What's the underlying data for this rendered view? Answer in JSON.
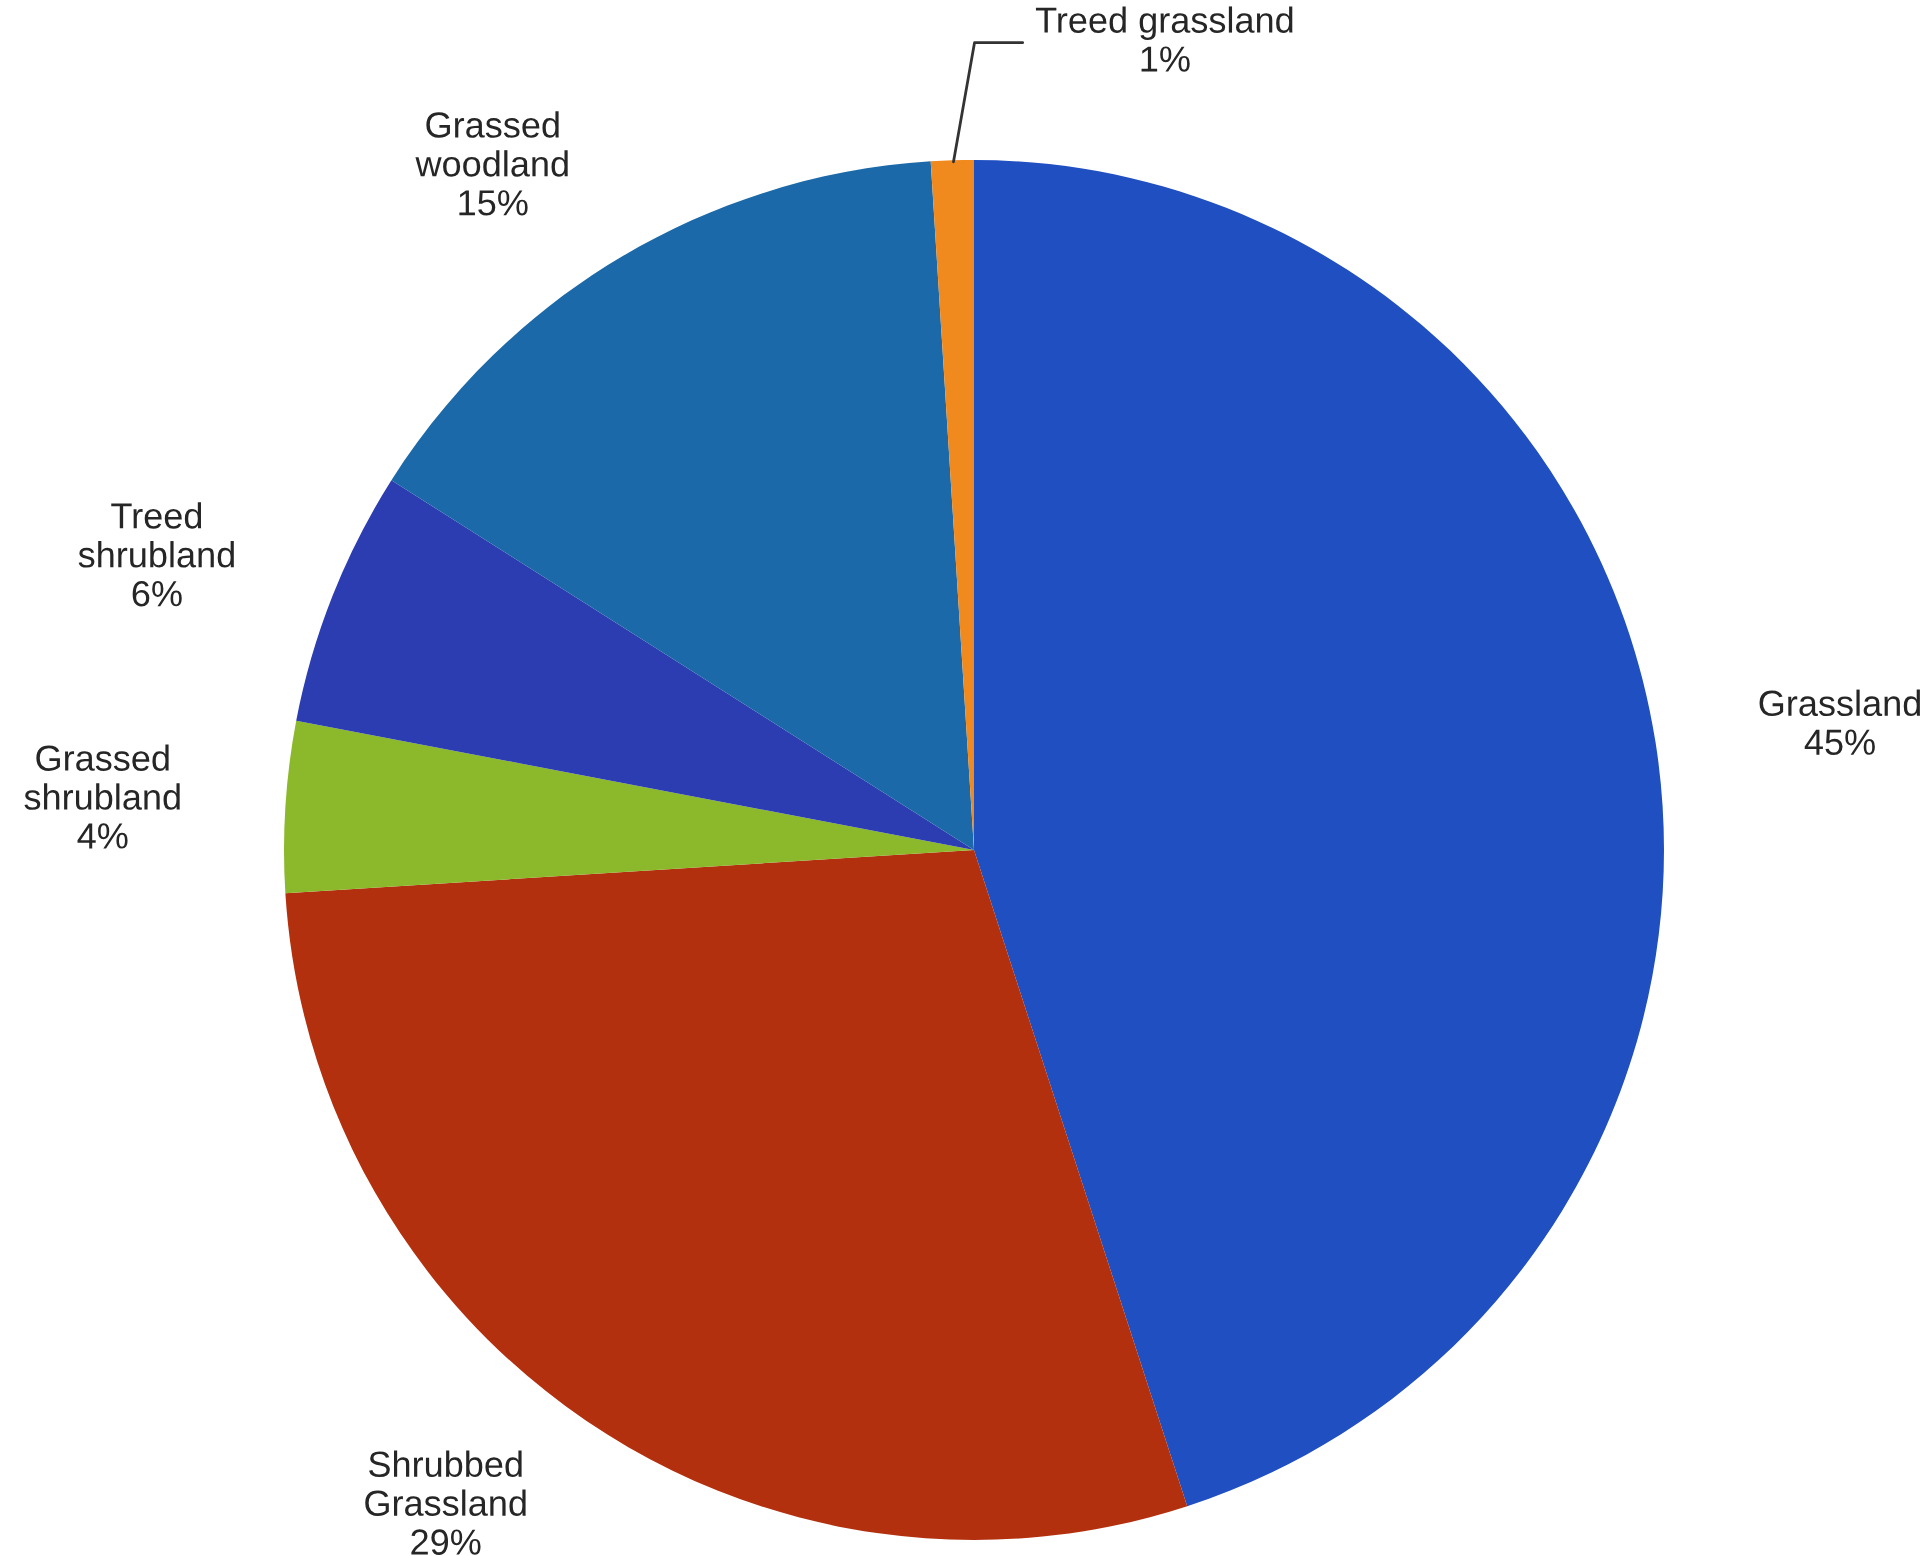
{
  "chart_data": {
    "type": "pie",
    "categories": [
      "Grassland",
      "Shrubbed\nGrassland",
      "Grassed\nshrubland",
      "Treed\nshrubland",
      "Grassed\nwoodland",
      "Treed grassland"
    ],
    "values": [
      45,
      29,
      4,
      6,
      15,
      1
    ],
    "value_labels": [
      "45%",
      "29%",
      "4%",
      "6%",
      "15%",
      "1%"
    ],
    "colors": [
      "#1f4fc0",
      "#b3300f",
      "#8cb82b",
      "#2b3db0",
      "#1b69a8",
      "#f08a1e"
    ],
    "legend": false
  }
}
